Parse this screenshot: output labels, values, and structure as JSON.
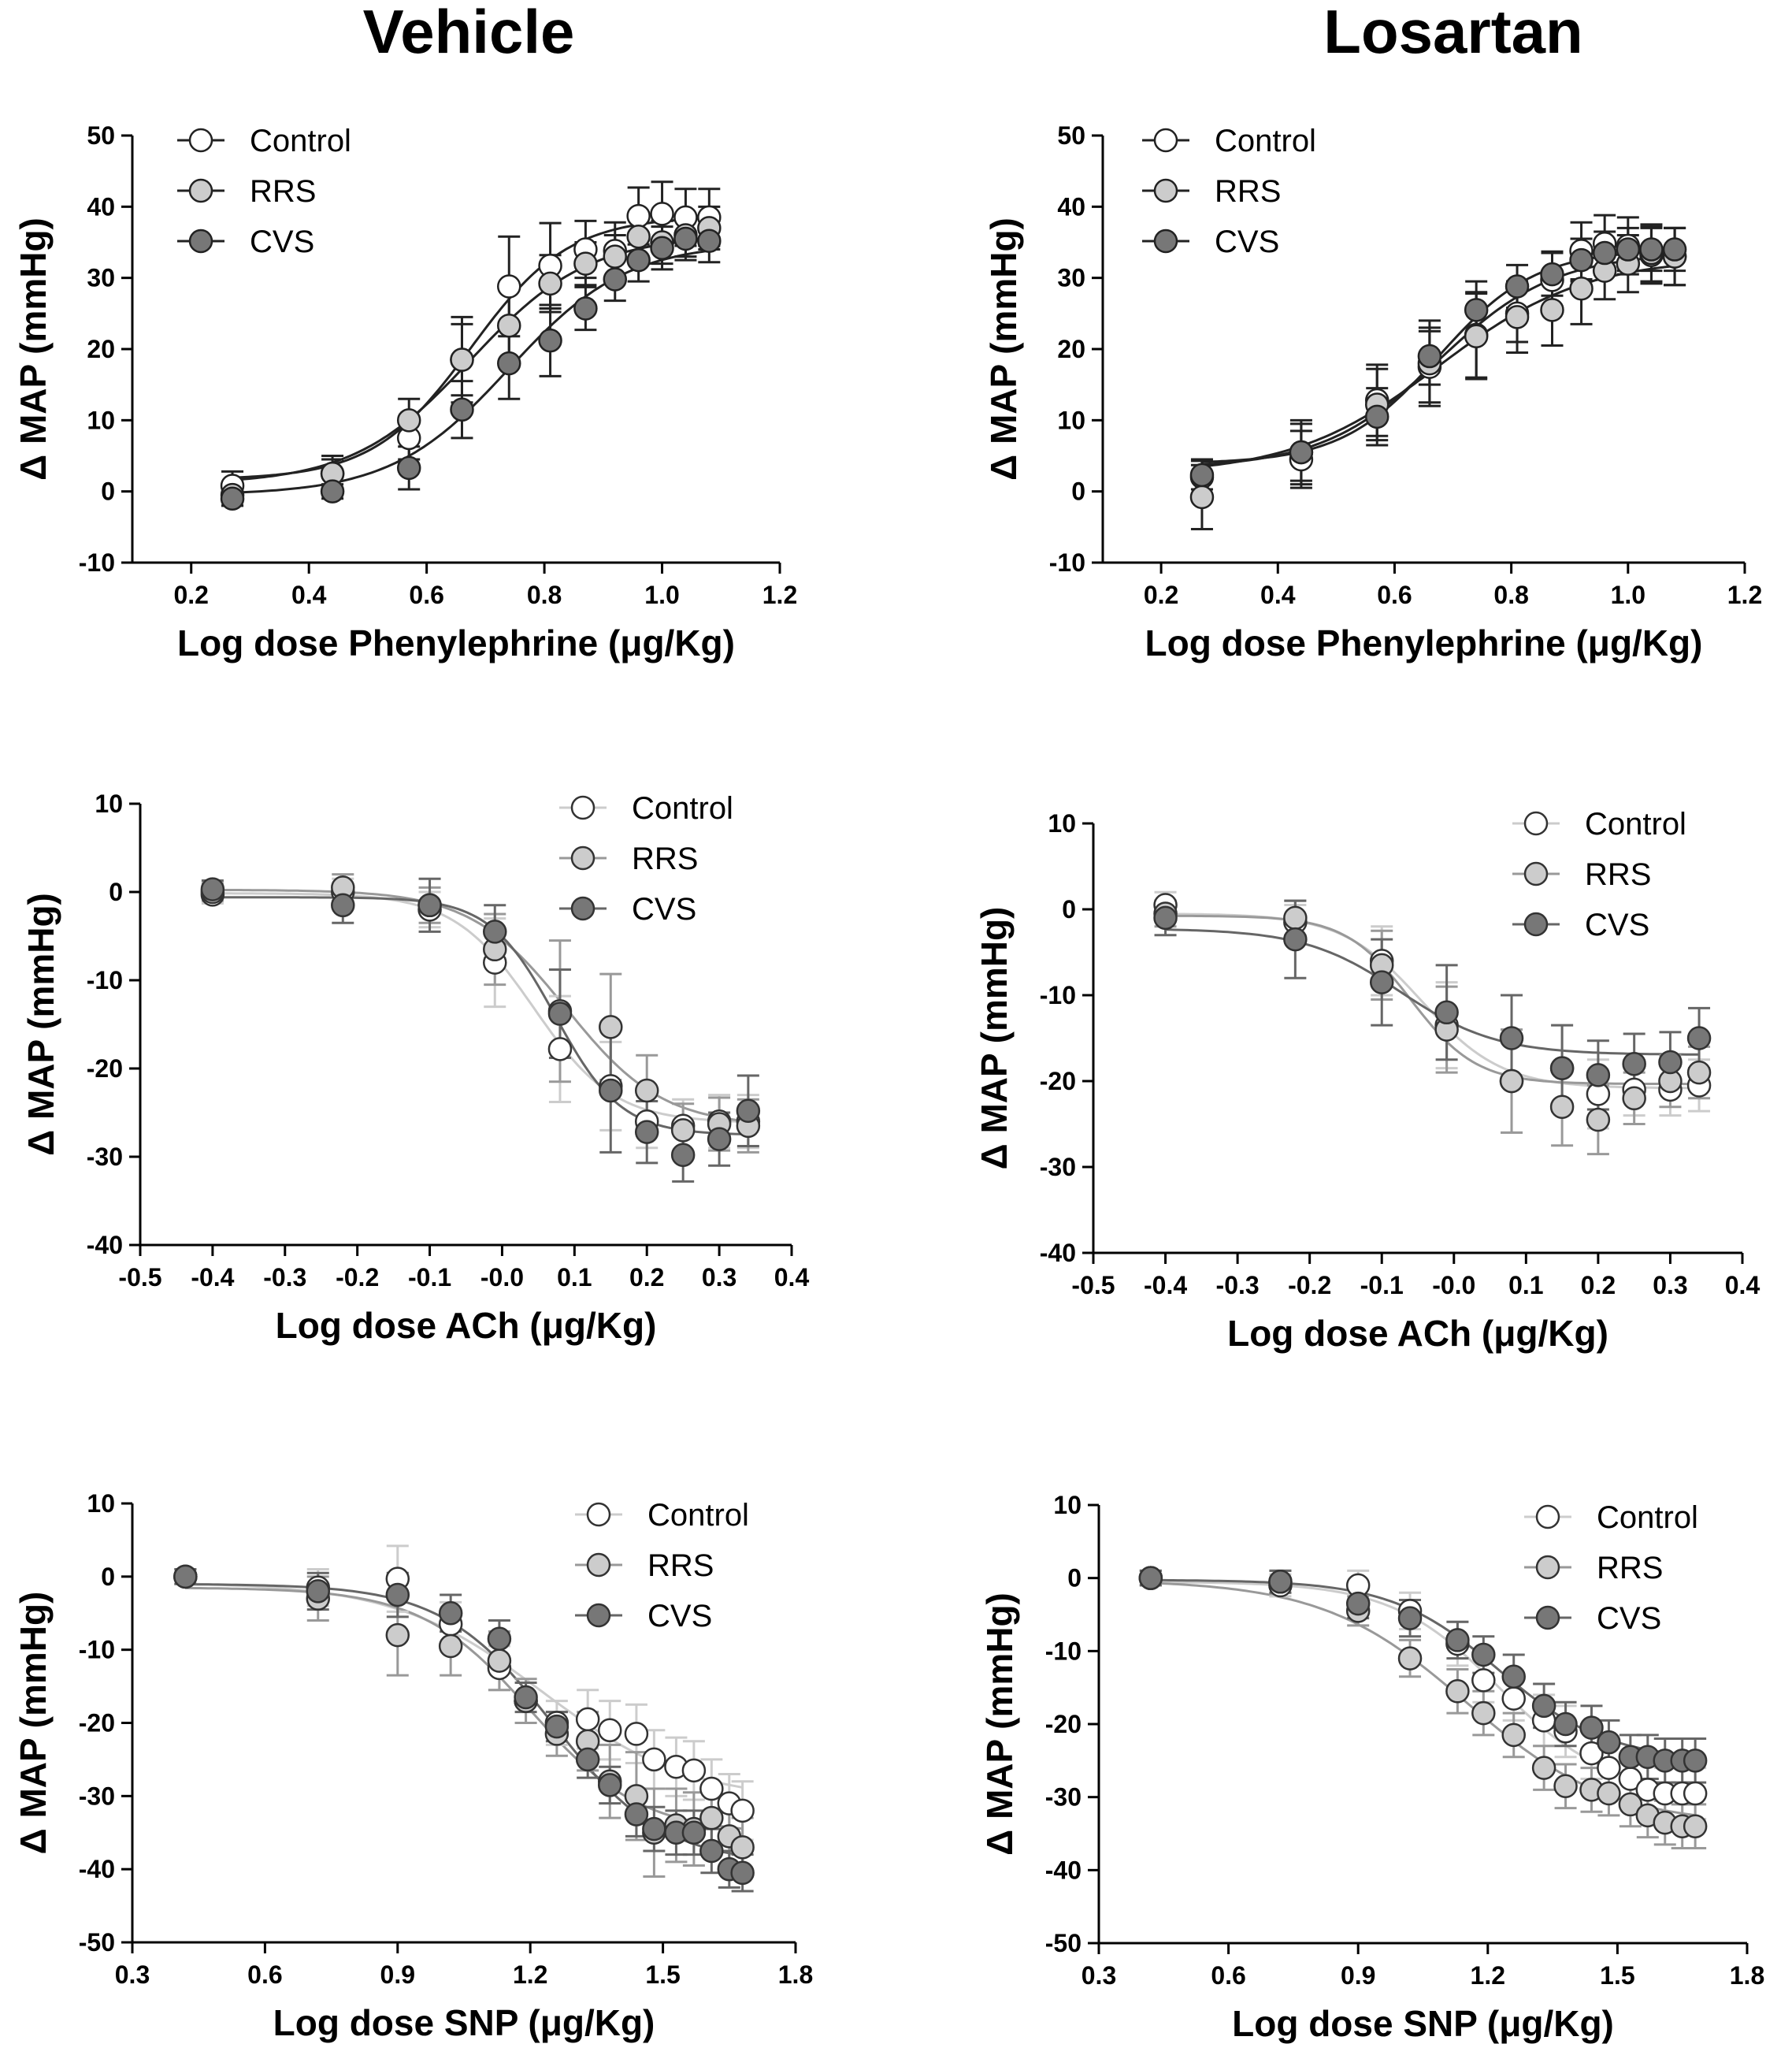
{
  "column_titles": [
    "Vehicle",
    "Losartan"
  ],
  "chart_data": [
    {
      "type": "scatter",
      "panel": "Vehicle",
      "xlabel": "Log dose Phenylephrine (μg/Kg)",
      "ylabel": "Δ MAP (mmHg)",
      "xlim": [
        0.1,
        1.2
      ],
      "ylim": [
        -10,
        50
      ],
      "xticks": [
        "0.2",
        "0.4",
        "0.6",
        "0.8",
        "1.0",
        "1.2"
      ],
      "yticks": [
        "-10",
        "0",
        "10",
        "20",
        "30",
        "40",
        "50"
      ],
      "legend": "top-left",
      "series": [
        {
          "name": "Control",
          "fill": "#ffffff",
          "stroke": "#222222",
          "line": "#222222",
          "x": [
            0.27,
            0.44,
            0.57,
            0.66,
            0.74,
            0.81,
            0.87,
            0.92,
            0.96,
            1.0,
            1.04,
            1.08
          ],
          "y": [
            0.8,
            2.5,
            7.5,
            18.5,
            28.8,
            31.7,
            34.0,
            33.8,
            38.7,
            39.0,
            38.5,
            38.5
          ],
          "err": [
            2,
            2.5,
            3,
            5,
            7,
            6,
            4,
            4,
            4,
            4.5,
            4,
            4
          ]
        },
        {
          "name": "RRS",
          "fill": "#cccccc",
          "stroke": "#222222",
          "line": "#222222",
          "x": [
            0.27,
            0.44,
            0.57,
            0.66,
            0.74,
            0.81,
            0.87,
            0.92,
            0.96,
            1.0,
            1.04,
            1.08
          ],
          "y": [
            -0.5,
            2.5,
            10.0,
            18.5,
            23.3,
            29.2,
            32.0,
            33.0,
            35.8,
            35.0,
            36.0,
            37.0
          ],
          "err": [
            1.5,
            2,
            3,
            6,
            5,
            4,
            3,
            3,
            3,
            3,
            3,
            3
          ]
        },
        {
          "name": "CVS",
          "fill": "#777777",
          "stroke": "#222222",
          "line": "#222222",
          "x": [
            0.27,
            0.44,
            0.57,
            0.66,
            0.74,
            0.81,
            0.87,
            0.92,
            0.96,
            1.0,
            1.04,
            1.08
          ],
          "y": [
            -1.0,
            0.0,
            3.3,
            11.5,
            18.0,
            21.2,
            25.7,
            29.8,
            32.5,
            34.2,
            35.5,
            35.2
          ],
          "err": [
            1,
            1,
            3,
            4,
            5,
            5,
            3,
            3,
            3,
            3,
            3,
            3
          ]
        }
      ]
    },
    {
      "type": "scatter",
      "panel": "Losartan",
      "xlabel": "Log dose Phenylephrine (μg/Kg)",
      "ylabel": "Δ MAP (mmHg)",
      "xlim": [
        0.1,
        1.2
      ],
      "ylim": [
        -10,
        50
      ],
      "xticks": [
        "0.2",
        "0.4",
        "0.6",
        "0.8",
        "1.0",
        "1.2"
      ],
      "yticks": [
        "-10",
        "0",
        "10",
        "20",
        "30",
        "40",
        "50"
      ],
      "legend": "top-left",
      "series": [
        {
          "name": "Control",
          "fill": "#ffffff",
          "stroke": "#222222",
          "line": "#222222",
          "x": [
            0.27,
            0.44,
            0.57,
            0.66,
            0.74,
            0.81,
            0.87,
            0.92,
            0.96,
            1.0,
            1.04,
            1.08
          ],
          "y": [
            2.0,
            4.5,
            12.8,
            17.5,
            22.0,
            25.0,
            29.7,
            33.8,
            34.8,
            34.5,
            33.2,
            33.0
          ],
          "err": [
            2.5,
            4,
            5,
            5,
            6,
            4,
            4,
            4,
            4,
            4,
            4,
            4
          ]
        },
        {
          "name": "RRS",
          "fill": "#cccccc",
          "stroke": "#222222",
          "line": "#222222",
          "x": [
            0.27,
            0.44,
            0.57,
            0.66,
            0.74,
            0.81,
            0.87,
            0.92,
            0.96,
            1.0,
            1.04,
            1.08
          ],
          "y": [
            -0.8,
            5.5,
            12.2,
            18.0,
            21.8,
            24.5,
            25.5,
            28.5,
            31.0,
            32.0,
            33.5,
            33.0
          ],
          "err": [
            4.5,
            4.5,
            5,
            6,
            6,
            5,
            5,
            5,
            4,
            4,
            4,
            4
          ]
        },
        {
          "name": "CVS",
          "fill": "#777777",
          "stroke": "#222222",
          "line": "#222222",
          "x": [
            0.27,
            0.44,
            0.57,
            0.66,
            0.74,
            0.81,
            0.87,
            0.92,
            0.96,
            1.0,
            1.04,
            1.08
          ],
          "y": [
            2.3,
            5.5,
            10.5,
            19.0,
            25.5,
            28.8,
            30.5,
            32.5,
            33.5,
            34.0,
            34.0,
            34.0
          ],
          "err": [
            2,
            4,
            4,
            4,
            4,
            3,
            3,
            3,
            3,
            3,
            3,
            3
          ]
        }
      ]
    },
    {
      "type": "scatter",
      "panel": "Vehicle",
      "xlabel": "Log dose ACh (μg/Kg)",
      "ylabel": "Δ MAP (mmHg)",
      "xlim": [
        -0.5,
        0.4
      ],
      "ylim": [
        -40,
        10
      ],
      "xticks": [
        "-0.5",
        "-0.4",
        "-0.3",
        "-0.2",
        "-0.1",
        "-0.0",
        "0.1",
        "0.2",
        "0.3",
        "0.4"
      ],
      "yticks": [
        "-40",
        "-30",
        "-20",
        "-10",
        "0",
        "10"
      ],
      "legend": "top-right",
      "series": [
        {
          "name": "Control",
          "fill": "#ffffff",
          "stroke": "#333333",
          "line": "#cccccc",
          "x": [
            -0.4,
            -0.22,
            -0.1,
            -0.01,
            0.08,
            0.15,
            0.2,
            0.25,
            0.3,
            0.34
          ],
          "y": [
            -0.3,
            0.0,
            -2.0,
            -8.0,
            -17.8,
            -22.0,
            -26.0,
            -26.5,
            -26.0,
            -26.0
          ],
          "err": [
            1,
            1.5,
            2,
            5,
            6,
            5,
            3,
            3,
            3,
            3
          ]
        },
        {
          "name": "RRS",
          "fill": "#cccccc",
          "stroke": "#333333",
          "line": "#999999",
          "x": [
            -0.4,
            -0.22,
            -0.1,
            -0.01,
            0.08,
            0.15,
            0.2,
            0.25,
            0.3,
            0.34
          ],
          "y": [
            0.0,
            0.5,
            -1.5,
            -6.5,
            -13.5,
            -15.3,
            -22.5,
            -27.0,
            -26.3,
            -26.5
          ],
          "err": [
            1,
            1.5,
            2,
            4,
            8,
            6,
            4,
            3,
            3,
            3
          ]
        },
        {
          "name": "CVS",
          "fill": "#777777",
          "stroke": "#333333",
          "line": "#666666",
          "x": [
            -0.4,
            -0.22,
            -0.1,
            -0.01,
            0.08,
            0.15,
            0.2,
            0.25,
            0.3,
            0.34
          ],
          "y": [
            0.3,
            -1.5,
            -1.5,
            -4.5,
            -13.8,
            -22.5,
            -27.2,
            -29.8,
            -28.0,
            -24.8
          ],
          "err": [
            1,
            2,
            3,
            3,
            5,
            7,
            3.5,
            3,
            3,
            4
          ]
        }
      ]
    },
    {
      "type": "scatter",
      "panel": "Losartan",
      "xlabel": "Log dose ACh (μg/Kg)",
      "ylabel": "Δ MAP (mmHg)",
      "xlim": [
        -0.5,
        0.4
      ],
      "ylim": [
        -40,
        10
      ],
      "xticks": [
        "-0.5",
        "-0.4",
        "-0.3",
        "-0.2",
        "-0.1",
        "-0.0",
        "0.1",
        "0.2",
        "0.3",
        "0.4"
      ],
      "yticks": [
        "-40",
        "-30",
        "-20",
        "-10",
        "0",
        "10"
      ],
      "legend": "top-right",
      "series": [
        {
          "name": "Control",
          "fill": "#ffffff",
          "stroke": "#333333",
          "line": "#cccccc",
          "x": [
            -0.4,
            -0.22,
            -0.1,
            -0.01,
            0.08,
            0.15,
            0.2,
            0.25,
            0.3,
            0.34
          ],
          "y": [
            0.5,
            -1.5,
            -6.0,
            -13.5,
            -20.0,
            -18.5,
            -21.5,
            -21.0,
            -21.0,
            -20.5
          ],
          "err": [
            1.5,
            2,
            4,
            5,
            6,
            5,
            4,
            3,
            3,
            3
          ]
        },
        {
          "name": "RRS",
          "fill": "#cccccc",
          "stroke": "#333333",
          "line": "#999999",
          "x": [
            -0.4,
            -0.22,
            -0.1,
            -0.01,
            0.08,
            0.15,
            0.2,
            0.25,
            0.3,
            0.34
          ],
          "y": [
            -0.5,
            -1.0,
            -6.5,
            -14.0,
            -20.0,
            -23.0,
            -24.5,
            -22.0,
            -20.0,
            -19.0
          ],
          "err": [
            1.5,
            2,
            4,
            5,
            6,
            4.5,
            4,
            3,
            3,
            3
          ]
        },
        {
          "name": "CVS",
          "fill": "#777777",
          "stroke": "#333333",
          "line": "#666666",
          "x": [
            -0.4,
            -0.22,
            -0.1,
            -0.01,
            0.08,
            0.15,
            0.2,
            0.25,
            0.3,
            0.34
          ],
          "y": [
            -1.0,
            -3.5,
            -8.5,
            -12.0,
            -15.0,
            -18.5,
            -19.3,
            -18.0,
            -17.8,
            -15.0
          ],
          "err": [
            2,
            4.5,
            5,
            5.5,
            5,
            5,
            4,
            3.5,
            3.5,
            3.5
          ]
        }
      ]
    },
    {
      "type": "scatter",
      "panel": "Vehicle",
      "xlabel": "Log dose SNP (μg/Kg)",
      "ylabel": "Δ MAP (mmHg)",
      "xlim": [
        0.3,
        1.8
      ],
      "ylim": [
        -50,
        10
      ],
      "xticks": [
        "0.3",
        "0.6",
        "0.9",
        "1.2",
        "1.5",
        "1.8"
      ],
      "yticks": [
        "-50",
        "-40",
        "-30",
        "-20",
        "-10",
        "0",
        "10"
      ],
      "legend": "top-right",
      "series": [
        {
          "name": "Control",
          "fill": "#ffffff",
          "stroke": "#333333",
          "line": "#cccccc",
          "x": [
            0.42,
            0.72,
            0.9,
            1.02,
            1.13,
            1.19,
            1.26,
            1.33,
            1.38,
            1.44,
            1.48,
            1.53,
            1.57,
            1.61,
            1.65,
            1.68
          ],
          "y": [
            0.0,
            -1.5,
            -0.3,
            -6.5,
            -12.5,
            -17.0,
            -20.0,
            -19.5,
            -21.0,
            -21.5,
            -25.0,
            -26.0,
            -26.5,
            -29.0,
            -31.0,
            -32.0
          ],
          "err": [
            1,
            2.5,
            4.5,
            3,
            3,
            3,
            3,
            4,
            4,
            4,
            4,
            4,
            4,
            4,
            4,
            4
          ]
        },
        {
          "name": "RRS",
          "fill": "#cccccc",
          "stroke": "#333333",
          "line": "#999999",
          "x": [
            0.42,
            0.72,
            0.9,
            1.02,
            1.13,
            1.19,
            1.26,
            1.33,
            1.38,
            1.44,
            1.48,
            1.53,
            1.57,
            1.61,
            1.65,
            1.68
          ],
          "y": [
            0.0,
            -3.0,
            -8.0,
            -9.5,
            -11.5,
            -17.0,
            -21.5,
            -22.5,
            -28.0,
            -30.0,
            -35.0,
            -34.0,
            -34.5,
            -33.0,
            -35.5,
            -37.0
          ],
          "err": [
            1,
            3,
            5.5,
            4,
            4,
            3,
            3,
            4,
            5,
            6,
            6,
            5,
            5,
            4,
            4,
            4
          ]
        },
        {
          "name": "CVS",
          "fill": "#777777",
          "stroke": "#333333",
          "line": "#666666",
          "x": [
            0.42,
            0.72,
            0.9,
            1.02,
            1.13,
            1.19,
            1.26,
            1.33,
            1.38,
            1.44,
            1.48,
            1.53,
            1.57,
            1.61,
            1.65,
            1.68
          ],
          "y": [
            0.0,
            -2.0,
            -2.5,
            -5.0,
            -8.5,
            -16.5,
            -20.5,
            -25.0,
            -28.5,
            -32.5,
            -34.5,
            -35.0,
            -35.0,
            -37.5,
            -40.0,
            -40.5
          ],
          "err": [
            1,
            2.5,
            3,
            2.5,
            2.5,
            2,
            2,
            2.5,
            2.5,
            3,
            3,
            3,
            3,
            3,
            2.5,
            2.5
          ]
        }
      ]
    },
    {
      "type": "scatter",
      "panel": "Losartan",
      "xlabel": "Log dose SNP (μg/Kg)",
      "ylabel": "Δ MAP (mmHg)",
      "xlim": [
        0.3,
        1.8
      ],
      "ylim": [
        -50,
        10
      ],
      "xticks": [
        "0.3",
        "0.6",
        "0.9",
        "1.2",
        "1.5",
        "1.8"
      ],
      "yticks": [
        "-50",
        "-40",
        "-30",
        "-20",
        "-10",
        "0",
        "10"
      ],
      "legend": "top-right",
      "series": [
        {
          "name": "Control",
          "fill": "#ffffff",
          "stroke": "#333333",
          "line": "#cccccc",
          "x": [
            0.42,
            0.72,
            0.9,
            1.02,
            1.13,
            1.19,
            1.26,
            1.33,
            1.38,
            1.44,
            1.48,
            1.53,
            1.57,
            1.61,
            1.65,
            1.68
          ],
          "y": [
            0.0,
            -1.0,
            -1.0,
            -4.5,
            -9.0,
            -14.0,
            -16.5,
            -19.5,
            -21.0,
            -24.0,
            -26.0,
            -27.5,
            -29.0,
            -29.5,
            -29.5,
            -29.5
          ],
          "err": [
            1,
            1.5,
            2,
            2.5,
            3,
            3,
            3,
            3.5,
            3.5,
            3.5,
            3.5,
            3.5,
            3.5,
            3.5,
            3.5,
            3.5
          ]
        },
        {
          "name": "RRS",
          "fill": "#cccccc",
          "stroke": "#333333",
          "line": "#999999",
          "x": [
            0.42,
            0.72,
            0.9,
            1.02,
            1.13,
            1.19,
            1.26,
            1.33,
            1.38,
            1.44,
            1.48,
            1.53,
            1.57,
            1.61,
            1.65,
            1.68
          ],
          "y": [
            0.0,
            -0.5,
            -4.5,
            -11.0,
            -15.5,
            -18.5,
            -21.5,
            -26.0,
            -28.5,
            -29.0,
            -29.5,
            -31.0,
            -32.5,
            -33.5,
            -34.0,
            -34.0
          ],
          "err": [
            1,
            1.5,
            2,
            2.5,
            3,
            3,
            3,
            3,
            3,
            3,
            3,
            3,
            3,
            3,
            3,
            3
          ]
        },
        {
          "name": "CVS",
          "fill": "#777777",
          "stroke": "#333333",
          "line": "#666666",
          "x": [
            0.42,
            0.72,
            0.9,
            1.02,
            1.13,
            1.19,
            1.26,
            1.33,
            1.38,
            1.44,
            1.48,
            1.53,
            1.57,
            1.61,
            1.65,
            1.68
          ],
          "y": [
            0.0,
            -0.5,
            -3.5,
            -5.5,
            -8.5,
            -10.5,
            -13.5,
            -17.5,
            -20.0,
            -20.5,
            -22.5,
            -24.5,
            -24.5,
            -25.0,
            -25.0,
            -25.0
          ],
          "err": [
            1,
            1.5,
            2,
            2.5,
            2.5,
            2.5,
            3,
            3,
            3,
            3,
            3,
            3,
            3,
            3,
            3,
            3
          ]
        }
      ]
    }
  ]
}
